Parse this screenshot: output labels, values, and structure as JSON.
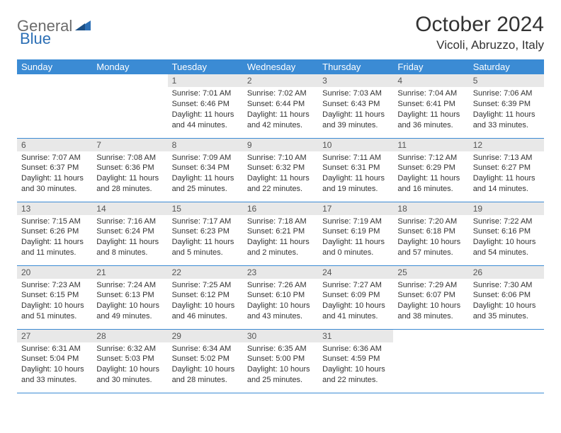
{
  "logo": {
    "gray": "General",
    "blue": "Blue"
  },
  "title": "October 2024",
  "location": "Vicoli, Abruzzo, Italy",
  "colors": {
    "header_bg": "#3b8bd4",
    "header_text": "#ffffff",
    "daynum_bg": "#e8e8e8",
    "daynum_text": "#555555",
    "body_text": "#333333",
    "logo_gray": "#6b6b6b",
    "logo_blue": "#2c6fb5",
    "row_border": "#3b8bd4"
  },
  "fonts": {
    "title_size": 30,
    "location_size": 17,
    "logo_size": 22,
    "day_header_size": 13,
    "daynum_size": 12,
    "details_size": 11
  },
  "day_headers": [
    "Sunday",
    "Monday",
    "Tuesday",
    "Wednesday",
    "Thursday",
    "Friday",
    "Saturday"
  ],
  "weeks": [
    [
      null,
      null,
      {
        "n": "1",
        "sr": "7:01 AM",
        "ss": "6:46 PM",
        "dl": "11 hours and 44 minutes."
      },
      {
        "n": "2",
        "sr": "7:02 AM",
        "ss": "6:44 PM",
        "dl": "11 hours and 42 minutes."
      },
      {
        "n": "3",
        "sr": "7:03 AM",
        "ss": "6:43 PM",
        "dl": "11 hours and 39 minutes."
      },
      {
        "n": "4",
        "sr": "7:04 AM",
        "ss": "6:41 PM",
        "dl": "11 hours and 36 minutes."
      },
      {
        "n": "5",
        "sr": "7:06 AM",
        "ss": "6:39 PM",
        "dl": "11 hours and 33 minutes."
      }
    ],
    [
      {
        "n": "6",
        "sr": "7:07 AM",
        "ss": "6:37 PM",
        "dl": "11 hours and 30 minutes."
      },
      {
        "n": "7",
        "sr": "7:08 AM",
        "ss": "6:36 PM",
        "dl": "11 hours and 28 minutes."
      },
      {
        "n": "8",
        "sr": "7:09 AM",
        "ss": "6:34 PM",
        "dl": "11 hours and 25 minutes."
      },
      {
        "n": "9",
        "sr": "7:10 AM",
        "ss": "6:32 PM",
        "dl": "11 hours and 22 minutes."
      },
      {
        "n": "10",
        "sr": "7:11 AM",
        "ss": "6:31 PM",
        "dl": "11 hours and 19 minutes."
      },
      {
        "n": "11",
        "sr": "7:12 AM",
        "ss": "6:29 PM",
        "dl": "11 hours and 16 minutes."
      },
      {
        "n": "12",
        "sr": "7:13 AM",
        "ss": "6:27 PM",
        "dl": "11 hours and 14 minutes."
      }
    ],
    [
      {
        "n": "13",
        "sr": "7:15 AM",
        "ss": "6:26 PM",
        "dl": "11 hours and 11 minutes."
      },
      {
        "n": "14",
        "sr": "7:16 AM",
        "ss": "6:24 PM",
        "dl": "11 hours and 8 minutes."
      },
      {
        "n": "15",
        "sr": "7:17 AM",
        "ss": "6:23 PM",
        "dl": "11 hours and 5 minutes."
      },
      {
        "n": "16",
        "sr": "7:18 AM",
        "ss": "6:21 PM",
        "dl": "11 hours and 2 minutes."
      },
      {
        "n": "17",
        "sr": "7:19 AM",
        "ss": "6:19 PM",
        "dl": "11 hours and 0 minutes."
      },
      {
        "n": "18",
        "sr": "7:20 AM",
        "ss": "6:18 PM",
        "dl": "10 hours and 57 minutes."
      },
      {
        "n": "19",
        "sr": "7:22 AM",
        "ss": "6:16 PM",
        "dl": "10 hours and 54 minutes."
      }
    ],
    [
      {
        "n": "20",
        "sr": "7:23 AM",
        "ss": "6:15 PM",
        "dl": "10 hours and 51 minutes."
      },
      {
        "n": "21",
        "sr": "7:24 AM",
        "ss": "6:13 PM",
        "dl": "10 hours and 49 minutes."
      },
      {
        "n": "22",
        "sr": "7:25 AM",
        "ss": "6:12 PM",
        "dl": "10 hours and 46 minutes."
      },
      {
        "n": "23",
        "sr": "7:26 AM",
        "ss": "6:10 PM",
        "dl": "10 hours and 43 minutes."
      },
      {
        "n": "24",
        "sr": "7:27 AM",
        "ss": "6:09 PM",
        "dl": "10 hours and 41 minutes."
      },
      {
        "n": "25",
        "sr": "7:29 AM",
        "ss": "6:07 PM",
        "dl": "10 hours and 38 minutes."
      },
      {
        "n": "26",
        "sr": "7:30 AM",
        "ss": "6:06 PM",
        "dl": "10 hours and 35 minutes."
      }
    ],
    [
      {
        "n": "27",
        "sr": "6:31 AM",
        "ss": "5:04 PM",
        "dl": "10 hours and 33 minutes."
      },
      {
        "n": "28",
        "sr": "6:32 AM",
        "ss": "5:03 PM",
        "dl": "10 hours and 30 minutes."
      },
      {
        "n": "29",
        "sr": "6:34 AM",
        "ss": "5:02 PM",
        "dl": "10 hours and 28 minutes."
      },
      {
        "n": "30",
        "sr": "6:35 AM",
        "ss": "5:00 PM",
        "dl": "10 hours and 25 minutes."
      },
      {
        "n": "31",
        "sr": "6:36 AM",
        "ss": "4:59 PM",
        "dl": "10 hours and 22 minutes."
      },
      null,
      null
    ]
  ],
  "labels": {
    "sunrise": "Sunrise:",
    "sunset": "Sunset:",
    "daylight": "Daylight:"
  }
}
